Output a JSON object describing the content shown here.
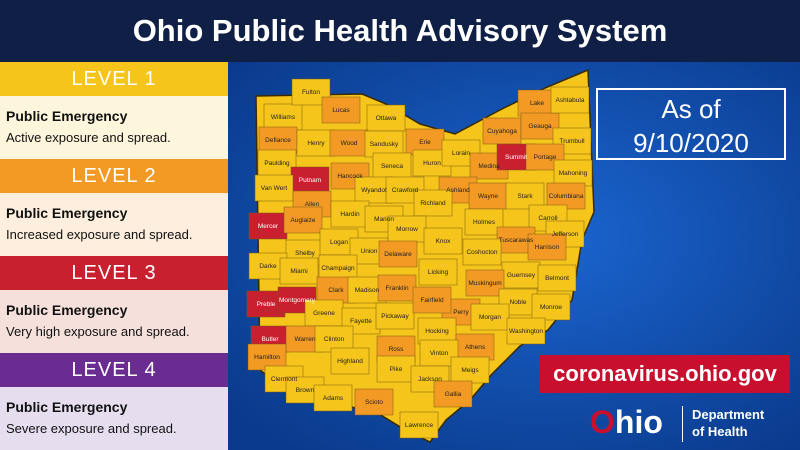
{
  "header": {
    "title": "Ohio Public Health Advisory System"
  },
  "levels": [
    {
      "label": "LEVEL 1",
      "heading": "Public Emergency",
      "description": "Active exposure and spread.",
      "color": "#f6c51b"
    },
    {
      "label": "LEVEL 2",
      "heading": "Public Emergency",
      "description": "Increased exposure and spread.",
      "color": "#f39a25"
    },
    {
      "label": "LEVEL 3",
      "heading": "Public Emergency",
      "description": "Very high exposure and spread.",
      "color": "#c8202f"
    },
    {
      "label": "LEVEL 4",
      "heading": "Public Emergency",
      "description": "Severe exposure and spread.",
      "color": "#6b2c91"
    }
  ],
  "as_of": {
    "label": "As of",
    "date": "9/10/2020"
  },
  "website": "coronavirus.ohio.gov",
  "logo": {
    "wordmark": "Ohio",
    "department": [
      "Department",
      "of Health"
    ]
  },
  "counties": [
    {
      "name": "Williams",
      "level": 1
    },
    {
      "name": "Fulton",
      "level": 1
    },
    {
      "name": "Lucas",
      "level": 2
    },
    {
      "name": "Ottawa",
      "level": 1
    },
    {
      "name": "Erie",
      "level": 2
    },
    {
      "name": "Defiance",
      "level": 2
    },
    {
      "name": "Henry",
      "level": 1
    },
    {
      "name": "Wood",
      "level": 2
    },
    {
      "name": "Sandusky",
      "level": 1
    },
    {
      "name": "Huron",
      "level": 1
    },
    {
      "name": "Lorain",
      "level": 1
    },
    {
      "name": "Cuyahoga",
      "level": 2
    },
    {
      "name": "Lake",
      "level": 2
    },
    {
      "name": "Geauga",
      "level": 2
    },
    {
      "name": "Ashtabula",
      "level": 1
    },
    {
      "name": "Trumbull",
      "level": 1
    },
    {
      "name": "Paulding",
      "level": 1
    },
    {
      "name": "Putnam",
      "level": 3
    },
    {
      "name": "Hancock",
      "level": 2
    },
    {
      "name": "Seneca",
      "level": 1
    },
    {
      "name": "Medina",
      "level": 2
    },
    {
      "name": "Summit",
      "level": 3
    },
    {
      "name": "Portage",
      "level": 2
    },
    {
      "name": "Mahoning",
      "level": 1
    },
    {
      "name": "Van Wert",
      "level": 1
    },
    {
      "name": "Allen",
      "level": 2
    },
    {
      "name": "Wyandot",
      "level": 1
    },
    {
      "name": "Crawford",
      "level": 1
    },
    {
      "name": "Ashland",
      "level": 2
    },
    {
      "name": "Wayne",
      "level": 2
    },
    {
      "name": "Stark",
      "level": 1
    },
    {
      "name": "Columbiana",
      "level": 2
    },
    {
      "name": "Mercer",
      "level": 3
    },
    {
      "name": "Auglaize",
      "level": 2
    },
    {
      "name": "Hardin",
      "level": 1
    },
    {
      "name": "Marion",
      "level": 1
    },
    {
      "name": "Richland",
      "level": 1
    },
    {
      "name": "Holmes",
      "level": 1
    },
    {
      "name": "Carroll",
      "level": 1
    },
    {
      "name": "Shelby",
      "level": 1
    },
    {
      "name": "Logan",
      "level": 1
    },
    {
      "name": "Union",
      "level": 1
    },
    {
      "name": "Morrow",
      "level": 1
    },
    {
      "name": "Knox",
      "level": 1
    },
    {
      "name": "Tuscarawas",
      "level": 2
    },
    {
      "name": "Jefferson",
      "level": 1
    },
    {
      "name": "Coshocton",
      "level": 1
    },
    {
      "name": "Harrison",
      "level": 2
    },
    {
      "name": "Darke",
      "level": 1
    },
    {
      "name": "Miami",
      "level": 1
    },
    {
      "name": "Champaign",
      "level": 1
    },
    {
      "name": "Delaware",
      "level": 2
    },
    {
      "name": "Licking",
      "level": 1
    },
    {
      "name": "Guernsey",
      "level": 1
    },
    {
      "name": "Belmont",
      "level": 1
    },
    {
      "name": "Muskingum",
      "level": 2
    },
    {
      "name": "Clark",
      "level": 2
    },
    {
      "name": "Madison",
      "level": 1
    },
    {
      "name": "Franklin",
      "level": 2
    },
    {
      "name": "Perry",
      "level": 2
    },
    {
      "name": "Noble",
      "level": 1
    },
    {
      "name": "Monroe",
      "level": 1
    },
    {
      "name": "Preble",
      "level": 3
    },
    {
      "name": "Montgomery",
      "level": 3
    },
    {
      "name": "Greene",
      "level": 1
    },
    {
      "name": "Fayette",
      "level": 1
    },
    {
      "name": "Pickaway",
      "level": 1
    },
    {
      "name": "Fairfield",
      "level": 2
    },
    {
      "name": "Morgan",
      "level": 1
    },
    {
      "name": "Washington",
      "level": 1
    },
    {
      "name": "Butler",
      "level": 3
    },
    {
      "name": "Warren",
      "level": 2
    },
    {
      "name": "Clinton",
      "level": 1
    },
    {
      "name": "Hocking",
      "level": 1
    },
    {
      "name": "Athens",
      "level": 2
    },
    {
      "name": "Hamilton",
      "level": 2
    },
    {
      "name": "Ross",
      "level": 2
    },
    {
      "name": "Vinton",
      "level": 1
    },
    {
      "name": "Highland",
      "level": 1
    },
    {
      "name": "Meigs",
      "level": 1
    },
    {
      "name": "Clermont",
      "level": 1
    },
    {
      "name": "Pike",
      "level": 1
    },
    {
      "name": "Jackson",
      "level": 1
    },
    {
      "name": "Brown",
      "level": 1
    },
    {
      "name": "Adams",
      "level": 1
    },
    {
      "name": "Scioto",
      "level": 2
    },
    {
      "name": "Gallia",
      "level": 2
    },
    {
      "name": "Lawrence",
      "level": 1
    }
  ]
}
